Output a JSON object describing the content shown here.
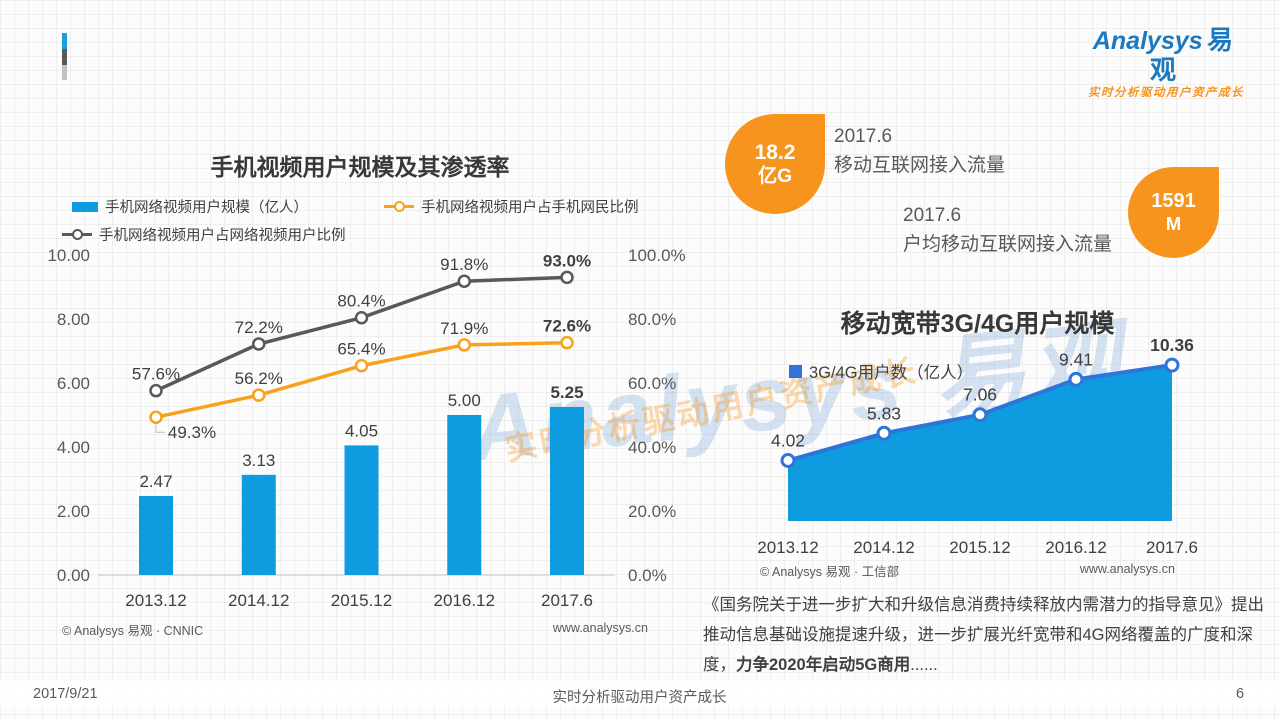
{
  "logo": {
    "brand_en": "Analysys",
    "brand_cn": "易观",
    "tagline": "实时分析驱动用户资产成长"
  },
  "watermark": {
    "main": "Analysys 易观",
    "tagline": "实时分析驱动用户资产成长"
  },
  "stats": [
    {
      "value": "18.2",
      "unit": "亿G",
      "period": "2017.6",
      "label": "移动互联网接入流量",
      "color": "#F7941E"
    },
    {
      "value": "1591",
      "unit": "M",
      "period": "2017.6",
      "label": "户均移动互联网接入流量",
      "color": "#F7941E"
    }
  ],
  "paragraph": {
    "text": "《国务院关于进一步扩大和升级信息消费持续释放内需潜力的指导意见》提出推动信息基础设施提速升级，进一步扩展光纤宽带和4G网络覆盖的广度和深度，",
    "bold": "力争2020年启动5G商用",
    "tail": "......"
  },
  "footer": {
    "date": "2017/9/21",
    "slogan": "实时分析驱动用户资产成长",
    "page": "6"
  },
  "chart_data": [
    {
      "type": "combo-bar-line",
      "title": "手机视频用户规模及其渗透率",
      "categories": [
        "2013.12",
        "2014.12",
        "2015.12",
        "2016.12",
        "2017.6"
      ],
      "series": [
        {
          "name": "手机网络视频用户规模（亿人）",
          "type": "bar",
          "axis": "left",
          "color": "#0E9BDF",
          "values": [
            2.47,
            3.13,
            4.05,
            5.0,
            5.25
          ]
        },
        {
          "name": "手机网络视频用户占手机网民比例",
          "type": "line",
          "axis": "right",
          "color": "#F9A11B",
          "values": [
            49.3,
            56.2,
            65.4,
            71.9,
            72.6
          ]
        },
        {
          "name": "手机网络视频用户占网络视频用户比例",
          "type": "line",
          "axis": "right",
          "color": "#595959",
          "values": [
            57.6,
            72.2,
            80.4,
            91.8,
            93.0
          ]
        }
      ],
      "left_axis": {
        "min": 0,
        "max": 10,
        "ticks": [
          "0.00",
          "2.00",
          "4.00",
          "6.00",
          "8.00",
          "10.00"
        ]
      },
      "right_axis": {
        "min": 0,
        "max": 100,
        "ticks": [
          "0.0%",
          "20.0%",
          "40.0%",
          "60.0%",
          "80.0%",
          "100.0%"
        ]
      },
      "grid": false,
      "legend_position": "top",
      "source": "© Analysys 易观 · CNNIC",
      "site": "www.analysys.cn"
    },
    {
      "type": "area",
      "title": "移动宽带3G/4G用户规模",
      "legend": "3G/4G用户数（亿人）",
      "categories": [
        "2013.12",
        "2014.12",
        "2015.12",
        "2016.12",
        "2017.6"
      ],
      "values": [
        4.02,
        5.83,
        7.06,
        9.41,
        10.36
      ],
      "ylim": [
        0,
        11
      ],
      "grid": false,
      "colors": {
        "fill": "#0E9BDF",
        "line": "#2E74D9"
      },
      "source": "© Analysys 易观 · 工信部",
      "site": "www.analysys.cn"
    }
  ]
}
